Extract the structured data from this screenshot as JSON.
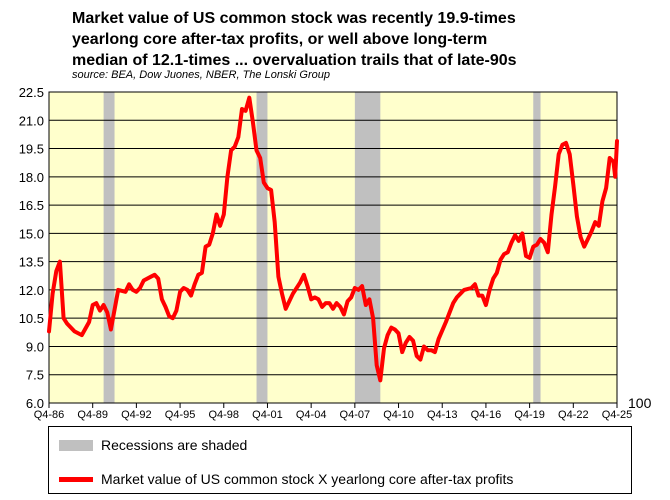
{
  "title_lines": [
    "Market value of US common stock was recently 19.9-times",
    "yearlong core after-tax profits, or well above long-term",
    "median of 12.1-times ... overvaluation trails that of late-90s"
  ],
  "source": "source: BEA, Dow Juones, NBER, The Lonski Group",
  "colors": {
    "plot_bg": "#ffffcc",
    "line": "#ff0000",
    "recession": "#c0c0c0"
  },
  "chart_data": {
    "type": "line",
    "y_axis": {
      "min": 6.0,
      "max": 22.5,
      "ticks": [
        "22.5",
        "21.0",
        "19.5",
        "18.0",
        "16.5",
        "15.0",
        "13.5",
        "12.0",
        "10.5",
        "9.0",
        "7.5",
        "6.0"
      ]
    },
    "x_ticks": [
      "Q4-86",
      "Q4-89",
      "Q4-92",
      "Q4-95",
      "Q4-98",
      "Q4-01",
      "Q4-04",
      "Q4-07",
      "Q4-10",
      "Q4-13",
      "Q4-16",
      "Q4-19",
      "Q4-22",
      "Q4-25"
    ],
    "x_range": [
      1986.75,
      2025.75
    ],
    "stray_label": "100",
    "recessions": [
      [
        1990.5,
        1991.25
      ],
      [
        2001.0,
        2001.75
      ],
      [
        2007.75,
        2009.5
      ],
      [
        2020.0,
        2020.5
      ]
    ],
    "series": [
      {
        "name": "Market value of US common stock X yearlong core after-tax profits",
        "points": [
          [
            1986.75,
            9.8
          ],
          [
            1987.0,
            11.8
          ],
          [
            1987.25,
            13.0
          ],
          [
            1987.5,
            13.5
          ],
          [
            1987.75,
            10.5
          ],
          [
            1988.0,
            10.2
          ],
          [
            1988.5,
            9.8
          ],
          [
            1989.0,
            9.6
          ],
          [
            1989.5,
            10.3
          ],
          [
            1989.75,
            11.2
          ],
          [
            1990.0,
            11.3
          ],
          [
            1990.25,
            10.9
          ],
          [
            1990.5,
            11.2
          ],
          [
            1990.75,
            10.8
          ],
          [
            1991.0,
            9.9
          ],
          [
            1991.5,
            12.0
          ],
          [
            1992.0,
            11.9
          ],
          [
            1992.25,
            12.3
          ],
          [
            1992.5,
            12.0
          ],
          [
            1992.75,
            11.9
          ],
          [
            1993.0,
            12.1
          ],
          [
            1993.25,
            12.5
          ],
          [
            1993.75,
            12.7
          ],
          [
            1994.0,
            12.8
          ],
          [
            1994.25,
            12.6
          ],
          [
            1994.5,
            11.5
          ],
          [
            1994.75,
            11.1
          ],
          [
            1995.0,
            10.6
          ],
          [
            1995.25,
            10.5
          ],
          [
            1995.5,
            10.9
          ],
          [
            1995.75,
            11.9
          ],
          [
            1996.0,
            12.1
          ],
          [
            1996.25,
            12.0
          ],
          [
            1996.5,
            11.7
          ],
          [
            1996.75,
            12.3
          ],
          [
            1997.0,
            12.8
          ],
          [
            1997.25,
            12.9
          ],
          [
            1997.5,
            14.3
          ],
          [
            1997.75,
            14.4
          ],
          [
            1998.0,
            15.0
          ],
          [
            1998.25,
            16.0
          ],
          [
            1998.5,
            15.4
          ],
          [
            1998.75,
            16.0
          ],
          [
            1999.0,
            18.0
          ],
          [
            1999.25,
            19.4
          ],
          [
            1999.5,
            19.6
          ],
          [
            1999.75,
            20.1
          ],
          [
            2000.0,
            21.6
          ],
          [
            2000.25,
            21.5
          ],
          [
            2000.5,
            22.2
          ],
          [
            2000.75,
            20.9
          ],
          [
            2001.0,
            19.4
          ],
          [
            2001.25,
            19.0
          ],
          [
            2001.5,
            17.7
          ],
          [
            2001.75,
            17.4
          ],
          [
            2002.0,
            17.3
          ],
          [
            2002.25,
            15.6
          ],
          [
            2002.5,
            12.7
          ],
          [
            2002.75,
            11.8
          ],
          [
            2003.0,
            11.0
          ],
          [
            2003.5,
            11.8
          ],
          [
            2004.0,
            12.4
          ],
          [
            2004.25,
            12.8
          ],
          [
            2004.5,
            12.2
          ],
          [
            2004.75,
            11.5
          ],
          [
            2005.0,
            11.6
          ],
          [
            2005.25,
            11.5
          ],
          [
            2005.5,
            11.1
          ],
          [
            2005.75,
            11.3
          ],
          [
            2006.0,
            11.3
          ],
          [
            2006.25,
            11.0
          ],
          [
            2006.5,
            11.3
          ],
          [
            2006.75,
            11.1
          ],
          [
            2007.0,
            10.7
          ],
          [
            2007.25,
            11.4
          ],
          [
            2007.5,
            11.6
          ],
          [
            2007.75,
            12.1
          ],
          [
            2008.0,
            12.0
          ],
          [
            2008.25,
            12.2
          ],
          [
            2008.5,
            11.2
          ],
          [
            2008.75,
            11.5
          ],
          [
            2009.0,
            10.5
          ],
          [
            2009.25,
            8.0
          ],
          [
            2009.5,
            7.2
          ],
          [
            2009.75,
            8.9
          ],
          [
            2010.0,
            9.6
          ],
          [
            2010.25,
            10.0
          ],
          [
            2010.5,
            9.9
          ],
          [
            2010.75,
            9.7
          ],
          [
            2011.0,
            8.7
          ],
          [
            2011.25,
            9.2
          ],
          [
            2011.5,
            9.5
          ],
          [
            2011.75,
            9.3
          ],
          [
            2012.0,
            8.5
          ],
          [
            2012.25,
            8.3
          ],
          [
            2012.5,
            9.0
          ],
          [
            2012.75,
            8.8
          ],
          [
            2013.0,
            8.8
          ],
          [
            2013.25,
            8.7
          ],
          [
            2013.5,
            9.4
          ],
          [
            2014.0,
            10.3
          ],
          [
            2014.5,
            11.3
          ],
          [
            2014.75,
            11.6
          ],
          [
            2015.0,
            11.8
          ],
          [
            2015.25,
            12.0
          ],
          [
            2015.75,
            12.1
          ],
          [
            2016.0,
            12.3
          ],
          [
            2016.25,
            11.7
          ],
          [
            2016.5,
            11.7
          ],
          [
            2016.75,
            11.2
          ],
          [
            2017.0,
            12.0
          ],
          [
            2017.25,
            12.6
          ],
          [
            2017.5,
            12.9
          ],
          [
            2017.75,
            13.6
          ],
          [
            2018.0,
            13.9
          ],
          [
            2018.25,
            14.0
          ],
          [
            2018.5,
            14.5
          ],
          [
            2018.75,
            14.9
          ],
          [
            2019.0,
            14.6
          ],
          [
            2019.25,
            15.0
          ],
          [
            2019.5,
            13.8
          ],
          [
            2019.75,
            13.7
          ],
          [
            2020.0,
            14.3
          ],
          [
            2020.25,
            14.4
          ],
          [
            2020.5,
            14.7
          ],
          [
            2020.75,
            14.5
          ],
          [
            2021.0,
            14.0
          ],
          [
            2021.25,
            16.0
          ],
          [
            2021.5,
            17.5
          ],
          [
            2021.75,
            19.2
          ],
          [
            2022.0,
            19.7
          ],
          [
            2022.25,
            19.8
          ],
          [
            2022.5,
            19.2
          ],
          [
            2022.75,
            17.6
          ],
          [
            2023.0,
            15.9
          ],
          [
            2023.25,
            14.8
          ],
          [
            2023.5,
            14.3
          ],
          [
            2023.75,
            14.7
          ],
          [
            2024.0,
            15.1
          ],
          [
            2024.25,
            15.6
          ],
          [
            2024.5,
            15.4
          ],
          [
            2024.75,
            16.7
          ],
          [
            2025.0,
            17.4
          ],
          [
            2025.25,
            19.0
          ],
          [
            2025.5,
            18.8
          ],
          [
            2025.625,
            18.0
          ],
          [
            2025.75,
            19.9
          ]
        ]
      }
    ]
  },
  "legend": {
    "recession_label": "Recessions are shaded",
    "series_label": "Market value of US common stock X yearlong core after-tax profits"
  }
}
